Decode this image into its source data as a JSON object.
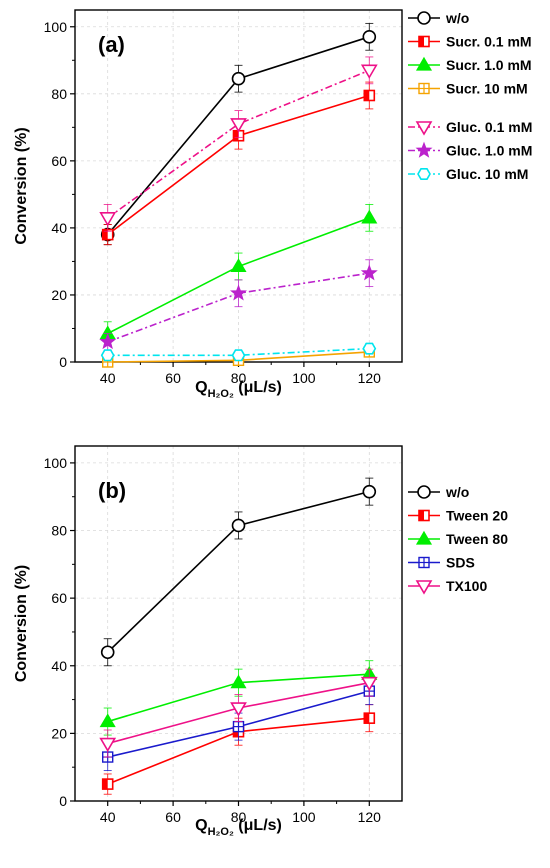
{
  "chart_data": [
    {
      "type": "line",
      "panel_label": "(a)",
      "ylabel": "Conversion (%)",
      "xlabel": {
        "main": "Q",
        "sub": "H₂O₂",
        "unit": " (μL/s)"
      },
      "x": [
        40,
        80,
        120
      ],
      "xlim": [
        30,
        130
      ],
      "ylim": [
        0,
        105
      ],
      "xticks": [
        40,
        60,
        80,
        100,
        120
      ],
      "yticks": [
        0,
        20,
        40,
        60,
        80,
        100
      ],
      "grid": true,
      "legend_position": "right-outside",
      "series": [
        {
          "name": "w/o",
          "values": [
            38,
            84.5,
            97
          ],
          "err": [
            3,
            4,
            4
          ],
          "color": "#000000",
          "marker": "circle",
          "dash": "solid"
        },
        {
          "name": "Sucr. 0.1 mM",
          "values": [
            38,
            67.5,
            79.5
          ],
          "err": [
            3,
            4,
            4
          ],
          "color": "#ff0000",
          "marker": "square-half",
          "dash": "solid"
        },
        {
          "name": "Sucr. 1.0 mM",
          "values": [
            8.5,
            28.5,
            43
          ],
          "err": [
            3.5,
            4,
            4
          ],
          "color": "#00ee00",
          "marker": "triangle",
          "dash": "solid"
        },
        {
          "name": "Sucr. 10  mM",
          "values": [
            0,
            0.5,
            3
          ],
          "err": [
            0.5,
            0.5,
            1
          ],
          "color": "#f5a300",
          "marker": "square-cross",
          "dash": "solid"
        },
        {
          "name": "Gluc. 0.1 mM",
          "values": [
            43,
            71,
            87
          ],
          "err": [
            4,
            4,
            4
          ],
          "color": "#ee1188",
          "marker": "triangle-down",
          "dash": "dashdot"
        },
        {
          "name": "Gluc. 1.0 mM",
          "values": [
            6,
            20.5,
            26.5
          ],
          "err": [
            2.5,
            4,
            4
          ],
          "color": "#bb22cc",
          "marker": "star",
          "dash": "dashdot"
        },
        {
          "name": "Gluc. 10  mM",
          "values": [
            2,
            2,
            4
          ],
          "err": [
            1,
            1,
            1.5
          ],
          "color": "#00e5ee",
          "marker": "hexagon",
          "dash": "dashdot"
        }
      ]
    },
    {
      "type": "line",
      "panel_label": "(b)",
      "ylabel": "Conversion (%)",
      "xlabel": {
        "main": "Q",
        "sub": "H₂O₂",
        "unit": " (μL/s)"
      },
      "x": [
        40,
        80,
        120
      ],
      "xlim": [
        30,
        130
      ],
      "ylim": [
        0,
        105
      ],
      "xticks": [
        40,
        60,
        80,
        100,
        120
      ],
      "yticks": [
        0,
        20,
        40,
        60,
        80,
        100
      ],
      "grid": true,
      "legend_position": "right-outside",
      "series": [
        {
          "name": "w/o",
          "values": [
            44,
            81.5,
            91.5
          ],
          "err": [
            4,
            4,
            4
          ],
          "color": "#000000",
          "marker": "circle",
          "dash": "solid"
        },
        {
          "name": "Tween 20",
          "values": [
            5,
            20.5,
            24.5
          ],
          "err": [
            3,
            4,
            4
          ],
          "color": "#ff0000",
          "marker": "square-half",
          "dash": "solid"
        },
        {
          "name": "Tween 80",
          "values": [
            23.5,
            35,
            37.5
          ],
          "err": [
            4,
            4,
            4
          ],
          "color": "#00ee00",
          "marker": "triangle",
          "dash": "solid"
        },
        {
          "name": "SDS",
          "values": [
            13,
            22,
            32.5
          ],
          "err": [
            4,
            4,
            4
          ],
          "color": "#1a1acc",
          "marker": "square-cross",
          "dash": "solid"
        },
        {
          "name": "TX100",
          "values": [
            17,
            27.5,
            35
          ],
          "err": [
            4,
            4,
            4
          ],
          "color": "#ee1188",
          "marker": "triangle-down",
          "dash": "solid"
        }
      ]
    }
  ]
}
